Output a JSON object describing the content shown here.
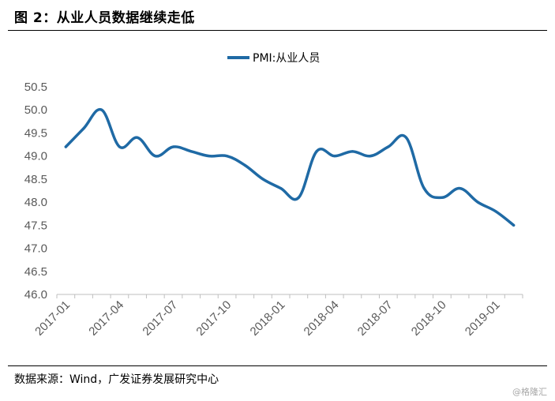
{
  "figure": {
    "title": "图 2：从业人员数据继续走低",
    "source": "数据来源：Wind，广发证券发展研究中心",
    "watermark": "@格隆汇"
  },
  "chart_data": {
    "type": "line",
    "title": "",
    "xlabel": "",
    "ylabel": "",
    "ylim": [
      46.0,
      50.5
    ],
    "yticks": [
      "46.0",
      "46.5",
      "47.0",
      "47.5",
      "48.0",
      "48.5",
      "49.0",
      "49.5",
      "50.0",
      "50.5"
    ],
    "xtick_labels": [
      "2017-01",
      "2017-04",
      "2017-07",
      "2017-10",
      "2018-01",
      "2018-04",
      "2018-07",
      "2018-10",
      "2019-01"
    ],
    "grid": false,
    "legend_position": "top-center",
    "color": "#1f6aa5",
    "x": [
      "2017-01",
      "2017-02",
      "2017-03",
      "2017-04",
      "2017-05",
      "2017-06",
      "2017-07",
      "2017-08",
      "2017-09",
      "2017-10",
      "2017-11",
      "2017-12",
      "2018-01",
      "2018-02",
      "2018-03",
      "2018-04",
      "2018-05",
      "2018-06",
      "2018-07",
      "2018-08",
      "2018-09",
      "2018-10",
      "2018-11",
      "2018-12",
      "2019-01",
      "2019-02"
    ],
    "series": [
      {
        "name": "PMI:从业人员",
        "values": [
          49.2,
          49.6,
          50.0,
          49.2,
          49.4,
          49.0,
          49.2,
          49.1,
          49.0,
          49.0,
          48.8,
          48.5,
          48.3,
          48.1,
          49.1,
          49.0,
          49.1,
          49.0,
          49.2,
          49.4,
          48.3,
          48.1,
          48.3,
          48.0,
          47.8,
          47.5
        ]
      }
    ]
  }
}
